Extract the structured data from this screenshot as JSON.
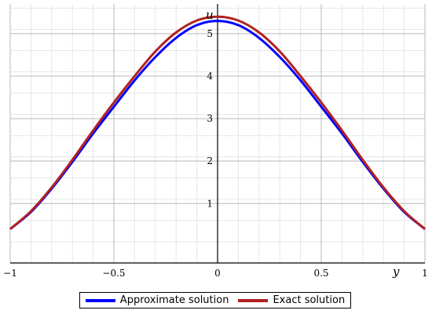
{
  "chart_data": {
    "type": "line",
    "title": "",
    "xlabel": "y",
    "ylabel": "u",
    "xlim": [
      -1,
      1
    ],
    "ylim": [
      -0.4,
      5.7
    ],
    "grid": true,
    "legend_position": "bottom",
    "x_ticks": [
      {
        "value": -1,
        "label": "−1"
      },
      {
        "value": -0.5,
        "label": "−0.5"
      },
      {
        "value": 0,
        "label": "0"
      },
      {
        "value": 0.5,
        "label": "0.5"
      },
      {
        "value": 1,
        "label": "1"
      }
    ],
    "y_ticks": [
      {
        "value": 1,
        "label": "1"
      },
      {
        "value": 2,
        "label": "2"
      },
      {
        "value": 3,
        "label": "3"
      },
      {
        "value": 4,
        "label": "4"
      },
      {
        "value": 5,
        "label": "5"
      }
    ],
    "x": [
      -1,
      -0.9,
      -0.8,
      -0.7,
      -0.6,
      -0.5,
      -0.4,
      -0.3,
      -0.2,
      -0.1,
      0,
      0.1,
      0.2,
      0.3,
      0.4,
      0.5,
      0.6,
      0.7,
      0.8,
      0.9,
      1
    ],
    "series": [
      {
        "name": "Approximate solution",
        "color": "#0000ff",
        "values": [
          0.4,
          0.8,
          1.35,
          1.98,
          2.65,
          3.28,
          3.9,
          4.45,
          4.9,
          5.2,
          5.3,
          5.2,
          4.9,
          4.45,
          3.9,
          3.28,
          2.65,
          1.98,
          1.35,
          0.8,
          0.4
        ]
      },
      {
        "name": "Exact solution",
        "color": "#b22222",
        "values": [
          0.4,
          0.82,
          1.38,
          2.03,
          2.72,
          3.38,
          4.0,
          4.58,
          5.03,
          5.31,
          5.4,
          5.31,
          5.03,
          4.58,
          4.0,
          3.38,
          2.72,
          2.03,
          1.38,
          0.82,
          0.4
        ]
      }
    ]
  }
}
